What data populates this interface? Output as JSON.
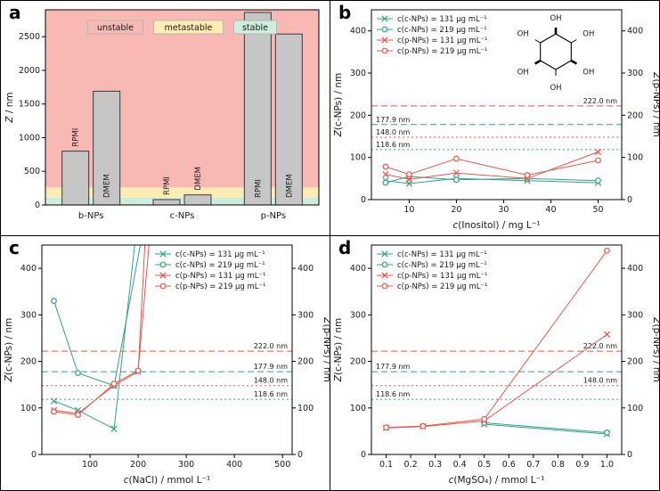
{
  "colors": {
    "green": "#2fa389",
    "red": "#e8564e",
    "bar_fill": "#c6c6c6",
    "bar_stroke": "#3a3a3a",
    "band_unstable": "#f8b9b5",
    "band_metastable": "#fdedb2",
    "band_stable": "#cdeddd"
  },
  "chart_data": [
    {
      "id": "a",
      "type": "bar",
      "panel_label": "a",
      "ylabel": "Z / nm",
      "ylim": [
        0,
        2900
      ],
      "yticks": [
        0,
        500,
        1000,
        1500,
        2000,
        2500
      ],
      "bands": [
        {
          "label": "stable",
          "from": 0,
          "to": 110
        },
        {
          "label": "metastable",
          "from": 110,
          "to": 260
        },
        {
          "label": "unstable",
          "from": 260,
          "to": 2900
        }
      ],
      "legend": [
        "unstable",
        "metastable",
        "stable"
      ],
      "groups": [
        {
          "label": "b-NPs",
          "bars": [
            {
              "label": "RPMI",
              "value": 800
            },
            {
              "label": "DMEM",
              "value": 1690
            }
          ]
        },
        {
          "label": "c-NPs",
          "bars": [
            {
              "label": "RPMI",
              "value": 80
            },
            {
              "label": "DMEM",
              "value": 150
            }
          ]
        },
        {
          "label": "p-NPs",
          "bars": [
            {
              "label": "RPMI",
              "value": 2860
            },
            {
              "label": "DMEM",
              "value": 2540
            }
          ]
        }
      ]
    },
    {
      "id": "b",
      "type": "scatter",
      "panel_label": "b",
      "xlabel": "c(Inositol) / mg L⁻¹",
      "ylabel_left": "Z(c-NPs) / nm",
      "ylabel_right": "Z(p-NPs) / nm",
      "xlim": [
        2,
        55
      ],
      "xticks": [
        10,
        20,
        30,
        40,
        50
      ],
      "xtick_decimals": 0,
      "ylim": [
        0,
        450
      ],
      "yticks": [
        0,
        100,
        200,
        300,
        400
      ],
      "legend_pos": "top-left",
      "inset": {
        "type": "inositol-structure",
        "oh_label": "OH"
      },
      "series": [
        {
          "name": "c(c-NPs) = 131 µg mL⁻¹",
          "color_key": "green",
          "marker": "x",
          "x": [
            5,
            10,
            20,
            35,
            50
          ],
          "y": [
            45,
            38,
            50,
            45,
            40
          ]
        },
        {
          "name": "c(c-NPs) = 219 µg mL⁻¹",
          "color_key": "green",
          "marker": "o",
          "x": [
            5,
            10,
            20,
            35,
            50
          ],
          "y": [
            40,
            55,
            47,
            50,
            45
          ]
        },
        {
          "name": "c(p-NPs) = 131 µg mL⁻¹",
          "color_key": "red",
          "marker": "x",
          "x": [
            5,
            10,
            20,
            35,
            50
          ],
          "y": [
            60,
            48,
            63,
            50,
            113
          ]
        },
        {
          "name": "c(p-NPs) = 219 µg mL⁻¹",
          "color_key": "red",
          "marker": "o",
          "x": [
            5,
            10,
            20,
            35,
            50
          ],
          "y": [
            78,
            60,
            97,
            58,
            93
          ]
        }
      ],
      "ref_lines": [
        {
          "value": 222.0,
          "label": "222.0 nm",
          "color_key": "red",
          "style": "dashed",
          "label_side": "right"
        },
        {
          "value": 177.9,
          "label": "177.9 nm",
          "color_key": "green",
          "style": "dashed",
          "label_side": "left"
        },
        {
          "value": 148.0,
          "label": "148.0 nm",
          "color_key": "red",
          "style": "dotted",
          "label_side": "left"
        },
        {
          "value": 118.6,
          "label": "118.6 nm",
          "color_key": "green",
          "style": "dotted",
          "label_side": "left"
        }
      ]
    },
    {
      "id": "c",
      "type": "scatter",
      "panel_label": "c",
      "xlabel": "c(NaCl) / mmol L⁻¹",
      "ylabel_left": "Z(c-NPs) / nm",
      "ylabel_right": "Z(p-NPs) / nm",
      "xlim": [
        0,
        520
      ],
      "xticks": [
        100,
        200,
        300,
        400,
        500
      ],
      "xtick_decimals": 0,
      "ylim": [
        0,
        450
      ],
      "yticks": [
        0,
        100,
        200,
        300,
        400
      ],
      "legend_pos": "top-right",
      "series": [
        {
          "name": "c(c-NPs) = 131 µg mL⁻¹",
          "color_key": "green",
          "marker": "x",
          "x": [
            25,
            75,
            150,
            195
          ],
          "y": [
            115,
            95,
            55,
            470
          ]
        },
        {
          "name": "c(c-NPs) = 219 µg mL⁻¹",
          "color_key": "green",
          "marker": "o",
          "x": [
            25,
            75,
            150,
            210
          ],
          "y": [
            330,
            175,
            148,
            480
          ]
        },
        {
          "name": "c(p-NPs) = 131 µg mL⁻¹",
          "color_key": "red",
          "marker": "x",
          "x": [
            25,
            75,
            150,
            200,
            215
          ],
          "y": [
            95,
            88,
            148,
            178,
            470
          ]
        },
        {
          "name": "c(p-NPs) = 219 µg mL⁻¹",
          "color_key": "red",
          "marker": "o",
          "x": [
            25,
            75,
            150,
            200,
            225
          ],
          "y": [
            92,
            85,
            152,
            180,
            480
          ]
        }
      ],
      "ref_lines": [
        {
          "value": 222.0,
          "label": "222.0 nm",
          "color_key": "red",
          "style": "dashed",
          "label_side": "right"
        },
        {
          "value": 177.9,
          "label": "177.9 nm",
          "color_key": "green",
          "style": "dashed",
          "label_side": "right"
        },
        {
          "value": 148.0,
          "label": "148.0 nm",
          "color_key": "red",
          "style": "dotted",
          "label_side": "right"
        },
        {
          "value": 118.6,
          "label": "118.6 nm",
          "color_key": "green",
          "style": "dotted",
          "label_side": "right"
        }
      ]
    },
    {
      "id": "d",
      "type": "scatter",
      "panel_label": "d",
      "xlabel": "c(MgSO₄) / mmol L⁻¹",
      "ylabel_left": "Z(c-NPs) / nm",
      "ylabel_right": "Z(p-NPs) / nm",
      "xlim": [
        0.04,
        1.06
      ],
      "xticks": [
        0.1,
        0.2,
        0.3,
        0.4,
        0.5,
        0.6,
        0.7,
        0.8,
        0.9,
        1.0
      ],
      "xtick_decimals": 1,
      "ylim": [
        0,
        450
      ],
      "yticks": [
        0,
        100,
        200,
        300,
        400
      ],
      "legend_pos": "top-left",
      "series": [
        {
          "name": "c(c-NPs) = 131 µg mL⁻¹",
          "color_key": "green",
          "marker": "x",
          "x": [
            0.5,
            1.0
          ],
          "y": [
            65,
            44
          ]
        },
        {
          "name": "c(c-NPs) = 219 µg mL⁻¹",
          "color_key": "green",
          "marker": "o",
          "x": [
            0.5,
            1.0
          ],
          "y": [
            68,
            47
          ]
        },
        {
          "name": "c(p-NPs) = 131 µg mL⁻¹",
          "color_key": "red",
          "marker": "x",
          "x": [
            0.1,
            0.25,
            0.5,
            1.0
          ],
          "y": [
            57,
            60,
            72,
            258
          ]
        },
        {
          "name": "c(p-NPs) = 219 µg mL⁻¹",
          "color_key": "red",
          "marker": "o",
          "x": [
            0.1,
            0.25,
            0.5,
            1.0
          ],
          "y": [
            58,
            61,
            76,
            438
          ]
        }
      ],
      "ref_lines": [
        {
          "value": 222.0,
          "label": "222.0 nm",
          "color_key": "red",
          "style": "dashed",
          "label_side": "right"
        },
        {
          "value": 177.9,
          "label": "177.9 nm",
          "color_key": "green",
          "style": "dashed",
          "label_side": "left"
        },
        {
          "value": 148.0,
          "label": "148.0 nm",
          "color_key": "red",
          "style": "dotted",
          "label_side": "right"
        },
        {
          "value": 118.6,
          "label": "118.6 nm",
          "color_key": "green",
          "style": "dotted",
          "label_side": "left"
        }
      ]
    }
  ]
}
